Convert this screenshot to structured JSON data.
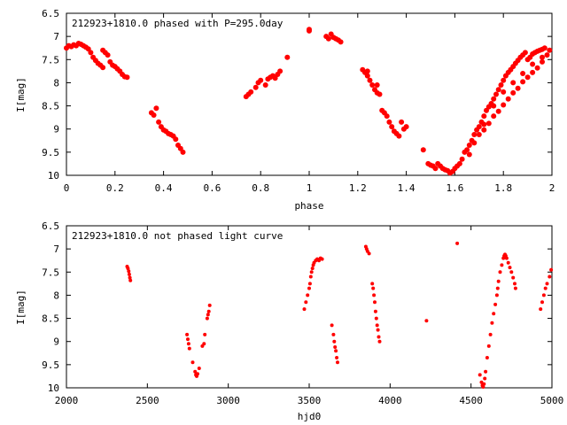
{
  "colors": {
    "marker": "#ff0000",
    "axis": "#000000",
    "background": "#ffffff"
  },
  "chart_data": [
    {
      "type": "scatter",
      "title": "212923+1810.0 phased with P=295.0day",
      "xlabel": "phase",
      "ylabel": "I[mag]",
      "xlim": [
        0,
        2
      ],
      "ylim": [
        6.5,
        10
      ],
      "y_inverted": true,
      "grid": false,
      "x_ticks": [
        0,
        0.2,
        0.4,
        0.6,
        0.8,
        1,
        1.2,
        1.4,
        1.6,
        1.8,
        2
      ],
      "x_tick_labels": [
        "0",
        "0.2",
        "0.4",
        "0.6",
        "0.8",
        "1",
        "1.2",
        "1.4",
        "1.6",
        "1.8",
        "2"
      ],
      "y_ticks": [
        6.5,
        7,
        7.5,
        8,
        8.5,
        9,
        9.5,
        10
      ],
      "y_tick_labels": [
        "6.5",
        "7",
        "7.5",
        "8",
        "8.5",
        "9",
        "9.5",
        "10"
      ],
      "points": [
        [
          0.0,
          7.25
        ],
        [
          0.01,
          7.2
        ],
        [
          0.02,
          7.22
        ],
        [
          0.03,
          7.18
        ],
        [
          0.04,
          7.2
        ],
        [
          0.05,
          7.15
        ],
        [
          0.06,
          7.17
        ],
        [
          0.07,
          7.2
        ],
        [
          0.08,
          7.23
        ],
        [
          0.09,
          7.27
        ],
        [
          0.1,
          7.35
        ],
        [
          0.11,
          7.45
        ],
        [
          0.12,
          7.52
        ],
        [
          0.13,
          7.58
        ],
        [
          0.14,
          7.62
        ],
        [
          0.15,
          7.67
        ],
        [
          0.15,
          7.3
        ],
        [
          0.16,
          7.35
        ],
        [
          0.17,
          7.4
        ],
        [
          0.18,
          7.55
        ],
        [
          0.19,
          7.62
        ],
        [
          0.2,
          7.65
        ],
        [
          0.21,
          7.7
        ],
        [
          0.22,
          7.75
        ],
        [
          0.23,
          7.82
        ],
        [
          0.24,
          7.87
        ],
        [
          0.25,
          7.88
        ],
        [
          0.35,
          8.65
        ],
        [
          0.36,
          8.7
        ],
        [
          0.37,
          8.55
        ],
        [
          0.38,
          8.85
        ],
        [
          0.39,
          8.95
        ],
        [
          0.4,
          9.02
        ],
        [
          0.41,
          9.05
        ],
        [
          0.42,
          9.1
        ],
        [
          0.43,
          9.12
        ],
        [
          0.44,
          9.15
        ],
        [
          0.45,
          9.22
        ],
        [
          0.46,
          9.35
        ],
        [
          0.47,
          9.42
        ],
        [
          0.48,
          9.5
        ],
        [
          0.74,
          8.3
        ],
        [
          0.75,
          8.25
        ],
        [
          0.76,
          8.2
        ],
        [
          0.78,
          8.1
        ],
        [
          0.79,
          8.0
        ],
        [
          0.8,
          7.95
        ],
        [
          0.82,
          8.05
        ],
        [
          0.83,
          7.92
        ],
        [
          0.84,
          7.88
        ],
        [
          0.85,
          7.85
        ],
        [
          0.86,
          7.9
        ],
        [
          0.87,
          7.82
        ],
        [
          0.88,
          7.75
        ],
        [
          0.91,
          7.45
        ],
        [
          1.0,
          6.85
        ],
        [
          1.07,
          7.0
        ],
        [
          1.08,
          7.05
        ],
        [
          1.09,
          6.95
        ],
        [
          1.1,
          7.02
        ],
        [
          1.11,
          7.05
        ],
        [
          1.12,
          7.08
        ],
        [
          1.13,
          7.12
        ],
        [
          1.22,
          7.72
        ],
        [
          1.23,
          7.78
        ],
        [
          1.24,
          7.85
        ],
        [
          1.25,
          7.95
        ],
        [
          1.26,
          8.05
        ],
        [
          1.27,
          8.15
        ],
        [
          1.28,
          8.22
        ],
        [
          1.29,
          8.25
        ],
        [
          1.3,
          8.6
        ],
        [
          1.31,
          8.65
        ],
        [
          1.32,
          8.72
        ],
        [
          1.33,
          8.85
        ],
        [
          1.34,
          8.95
        ],
        [
          1.35,
          9.05
        ],
        [
          1.36,
          9.1
        ],
        [
          1.37,
          9.15
        ],
        [
          1.38,
          8.85
        ],
        [
          1.39,
          9.0
        ],
        [
          1.4,
          8.95
        ],
        [
          1.47,
          9.45
        ],
        [
          1.49,
          9.75
        ],
        [
          1.5,
          9.78
        ],
        [
          1.51,
          9.8
        ],
        [
          1.52,
          9.85
        ],
        [
          1.53,
          9.75
        ],
        [
          1.54,
          9.8
        ],
        [
          1.55,
          9.85
        ],
        [
          1.56,
          9.88
        ],
        [
          1.57,
          9.9
        ],
        [
          1.58,
          9.95
        ],
        [
          1.59,
          9.92
        ],
        [
          1.6,
          9.85
        ],
        [
          1.61,
          9.8
        ],
        [
          1.62,
          9.75
        ],
        [
          1.63,
          9.65
        ],
        [
          1.64,
          9.5
        ],
        [
          1.65,
          9.45
        ],
        [
          1.66,
          9.35
        ],
        [
          1.67,
          9.25
        ],
        [
          1.68,
          9.12
        ],
        [
          1.69,
          9.02
        ],
        [
          1.7,
          8.95
        ],
        [
          1.71,
          8.85
        ],
        [
          1.72,
          8.72
        ],
        [
          1.73,
          8.6
        ],
        [
          1.74,
          8.52
        ],
        [
          1.75,
          8.45
        ],
        [
          1.76,
          8.35
        ],
        [
          1.77,
          8.25
        ],
        [
          1.78,
          8.15
        ],
        [
          1.79,
          8.05
        ],
        [
          1.8,
          7.95
        ],
        [
          1.81,
          7.85
        ],
        [
          1.82,
          7.78
        ],
        [
          1.83,
          7.72
        ],
        [
          1.84,
          7.65
        ],
        [
          1.85,
          7.58
        ],
        [
          1.86,
          7.52
        ],
        [
          1.87,
          7.45
        ],
        [
          1.88,
          7.4
        ],
        [
          1.89,
          7.35
        ],
        [
          1.9,
          7.5
        ],
        [
          1.91,
          7.45
        ],
        [
          1.92,
          7.38
        ],
        [
          1.93,
          7.35
        ],
        [
          1.94,
          7.32
        ],
        [
          1.95,
          7.3
        ],
        [
          1.96,
          7.28
        ],
        [
          1.97,
          7.25
        ],
        [
          1.99,
          7.3
        ],
        [
          1.0,
          6.88
        ],
        [
          1.24,
          7.75
        ],
        [
          1.28,
          8.05
        ],
        [
          1.66,
          9.55
        ],
        [
          1.7,
          9.12
        ],
        [
          1.72,
          9.02
        ],
        [
          1.74,
          8.88
        ],
        [
          1.76,
          8.72
        ],
        [
          1.78,
          8.62
        ],
        [
          1.8,
          8.48
        ],
        [
          1.82,
          8.35
        ],
        [
          1.84,
          8.22
        ],
        [
          1.86,
          8.12
        ],
        [
          1.88,
          7.98
        ],
        [
          1.9,
          7.88
        ],
        [
          1.92,
          7.78
        ],
        [
          1.94,
          7.68
        ],
        [
          1.96,
          7.55
        ],
        [
          1.98,
          7.4
        ],
        [
          1.68,
          9.3
        ],
        [
          1.72,
          8.9
        ],
        [
          1.76,
          8.5
        ],
        [
          1.8,
          8.2
        ],
        [
          1.84,
          8.0
        ],
        [
          1.88,
          7.8
        ],
        [
          1.92,
          7.6
        ],
        [
          1.96,
          7.45
        ]
      ]
    },
    {
      "type": "scatter",
      "title": "212923+1810.0 not phased light curve",
      "xlabel": "hjd0",
      "ylabel": "I[mag]",
      "xlim": [
        2000,
        5000
      ],
      "ylim": [
        6.5,
        10
      ],
      "y_inverted": true,
      "grid": false,
      "x_ticks": [
        2000,
        2500,
        3000,
        3500,
        4000,
        4500,
        5000
      ],
      "x_tick_labels": [
        "2000",
        "2500",
        "3000",
        "3500",
        "4000",
        "4500",
        "5000"
      ],
      "y_ticks": [
        6.5,
        7,
        7.5,
        8,
        8.5,
        9,
        9.5,
        10
      ],
      "y_tick_labels": [
        "6.5",
        "7",
        "7.5",
        "8",
        "8.5",
        "9",
        "9.5",
        "10"
      ],
      "points": [
        [
          2375,
          7.38
        ],
        [
          2380,
          7.42
        ],
        [
          2385,
          7.48
        ],
        [
          2388,
          7.55
        ],
        [
          2392,
          7.62
        ],
        [
          2395,
          7.68
        ],
        [
          2745,
          8.85
        ],
        [
          2750,
          8.95
        ],
        [
          2755,
          9.05
        ],
        [
          2760,
          9.15
        ],
        [
          2780,
          9.45
        ],
        [
          2795,
          9.65
        ],
        [
          2800,
          9.72
        ],
        [
          2805,
          9.75
        ],
        [
          2810,
          9.7
        ],
        [
          2820,
          9.58
        ],
        [
          2840,
          9.1
        ],
        [
          2850,
          9.05
        ],
        [
          2855,
          8.85
        ],
        [
          2870,
          8.5
        ],
        [
          2875,
          8.42
        ],
        [
          2880,
          8.35
        ],
        [
          2885,
          8.22
        ],
        [
          3470,
          8.3
        ],
        [
          3480,
          8.15
        ],
        [
          3490,
          8.0
        ],
        [
          3500,
          7.85
        ],
        [
          3505,
          7.75
        ],
        [
          3510,
          7.6
        ],
        [
          3515,
          7.5
        ],
        [
          3520,
          7.42
        ],
        [
          3525,
          7.35
        ],
        [
          3530,
          7.3
        ],
        [
          3540,
          7.25
        ],
        [
          3550,
          7.22
        ],
        [
          3560,
          7.25
        ],
        [
          3570,
          7.2
        ],
        [
          3580,
          7.22
        ],
        [
          3640,
          8.65
        ],
        [
          3650,
          8.85
        ],
        [
          3655,
          9.0
        ],
        [
          3660,
          9.12
        ],
        [
          3665,
          9.2
        ],
        [
          3670,
          9.35
        ],
        [
          3675,
          9.45
        ],
        [
          3850,
          6.95
        ],
        [
          3855,
          7.0
        ],
        [
          3860,
          7.05
        ],
        [
          3870,
          7.1
        ],
        [
          3890,
          7.75
        ],
        [
          3895,
          7.85
        ],
        [
          3900,
          8.0
        ],
        [
          3905,
          8.15
        ],
        [
          3910,
          8.35
        ],
        [
          3915,
          8.5
        ],
        [
          3920,
          8.65
        ],
        [
          3925,
          8.75
        ],
        [
          3930,
          8.9
        ],
        [
          3935,
          9.0
        ],
        [
          4225,
          8.55
        ],
        [
          4415,
          6.88
        ],
        [
          4555,
          9.72
        ],
        [
          4565,
          9.88
        ],
        [
          4570,
          9.95
        ],
        [
          4575,
          9.98
        ],
        [
          4580,
          9.92
        ],
        [
          4585,
          9.8
        ],
        [
          4590,
          9.65
        ],
        [
          4600,
          9.35
        ],
        [
          4610,
          9.1
        ],
        [
          4620,
          8.85
        ],
        [
          4630,
          8.6
        ],
        [
          4640,
          8.4
        ],
        [
          4650,
          8.2
        ],
        [
          4660,
          8.0
        ],
        [
          4665,
          7.85
        ],
        [
          4670,
          7.7
        ],
        [
          4680,
          7.5
        ],
        [
          4690,
          7.35
        ],
        [
          4700,
          7.2
        ],
        [
          4705,
          7.15
        ],
        [
          4710,
          7.12
        ],
        [
          4715,
          7.15
        ],
        [
          4720,
          7.2
        ],
        [
          4730,
          7.3
        ],
        [
          4740,
          7.4
        ],
        [
          4750,
          7.5
        ],
        [
          4760,
          7.62
        ],
        [
          4770,
          7.75
        ],
        [
          4775,
          7.85
        ],
        [
          4930,
          8.3
        ],
        [
          4940,
          8.15
        ],
        [
          4950,
          8.0
        ],
        [
          4960,
          7.85
        ],
        [
          4970,
          7.75
        ],
        [
          4985,
          7.6
        ],
        [
          4995,
          7.45
        ]
      ]
    }
  ]
}
